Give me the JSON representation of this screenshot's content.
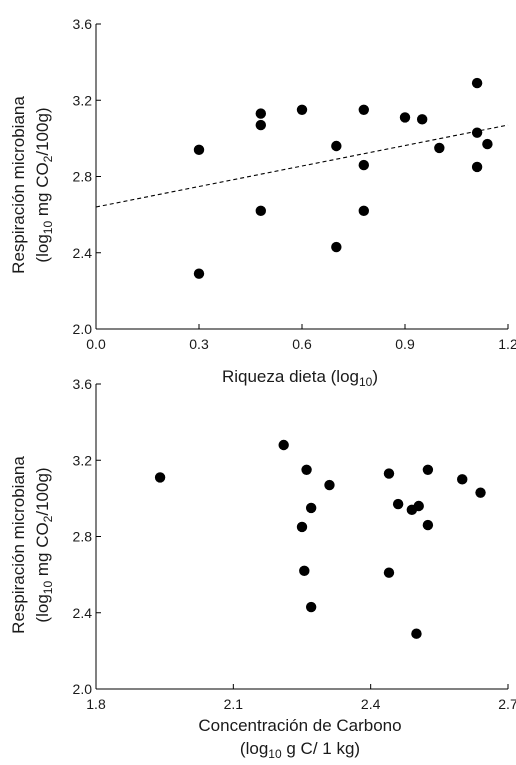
{
  "chart_data": [
    {
      "type": "scatter",
      "xlabel": "Riqueza dieta (log",
      "xlabel_sub": "10",
      "xlabel_end": ")",
      "ylabel_line1": "Respiración microbiana",
      "ylabel_line2": {
        "a": "(log",
        "sub1": "10",
        "b": " mg CO",
        "sub2": "2",
        "c": "/100g)"
      },
      "xlim": [
        0.0,
        1.2
      ],
      "ylim": [
        2.0,
        3.6
      ],
      "xticks": [
        "0.0",
        "0.3",
        "0.6",
        "0.9",
        "1.2"
      ],
      "yticks": [
        "2.0",
        "2.4",
        "2.8",
        "3.2",
        "3.6"
      ],
      "xtick_values": [
        0.0,
        0.3,
        0.6,
        0.9,
        1.2
      ],
      "ytick_values": [
        2.0,
        2.4,
        2.8,
        3.2,
        3.6
      ],
      "points": [
        {
          "x": 0.3,
          "y": 2.94
        },
        {
          "x": 0.3,
          "y": 2.29
        },
        {
          "x": 0.48,
          "y": 3.13
        },
        {
          "x": 0.48,
          "y": 3.07
        },
        {
          "x": 0.48,
          "y": 2.62
        },
        {
          "x": 0.6,
          "y": 3.15
        },
        {
          "x": 0.7,
          "y": 2.96
        },
        {
          "x": 0.7,
          "y": 2.43
        },
        {
          "x": 0.78,
          "y": 3.15
        },
        {
          "x": 0.78,
          "y": 2.86
        },
        {
          "x": 0.78,
          "y": 2.62
        },
        {
          "x": 0.9,
          "y": 3.11
        },
        {
          "x": 0.95,
          "y": 3.1
        },
        {
          "x": 1.0,
          "y": 2.95
        },
        {
          "x": 1.11,
          "y": 3.29
        },
        {
          "x": 1.11,
          "y": 3.03
        },
        {
          "x": 1.11,
          "y": 2.85
        },
        {
          "x": 1.14,
          "y": 2.97
        }
      ],
      "trendline": {
        "x": [
          0.0,
          1.2
        ],
        "y": [
          2.64,
          3.07
        ],
        "style": "dashed"
      },
      "grid": false
    },
    {
      "type": "scatter",
      "xlabel_line1": "Concentración de Carbono",
      "xlabel_line2": {
        "a": "(log",
        "sub": "10",
        "b": " g C/ 1 kg)"
      },
      "ylabel_line1": "Respiración microbiana",
      "ylabel_line2": {
        "a": "(log",
        "sub1": "10",
        "b": " mg CO",
        "sub2": "2",
        "c": "/100g)"
      },
      "xlim": [
        1.8,
        2.7
      ],
      "ylim": [
        2.0,
        3.6
      ],
      "xticks": [
        "1.8",
        "2.1",
        "2.4",
        "2.7"
      ],
      "yticks": [
        "2.0",
        "2.4",
        "2.8",
        "3.2",
        "3.6"
      ],
      "xtick_values": [
        1.8,
        2.1,
        2.4,
        2.7
      ],
      "ytick_values": [
        2.0,
        2.4,
        2.8,
        3.2,
        3.6
      ],
      "points": [
        {
          "x": 1.94,
          "y": 3.11
        },
        {
          "x": 2.21,
          "y": 3.28
        },
        {
          "x": 2.25,
          "y": 2.85
        },
        {
          "x": 2.255,
          "y": 2.62
        },
        {
          "x": 2.26,
          "y": 3.15
        },
        {
          "x": 2.27,
          "y": 2.95
        },
        {
          "x": 2.27,
          "y": 2.43
        },
        {
          "x": 2.31,
          "y": 3.07
        },
        {
          "x": 2.44,
          "y": 3.13
        },
        {
          "x": 2.44,
          "y": 2.61
        },
        {
          "x": 2.46,
          "y": 2.97
        },
        {
          "x": 2.49,
          "y": 2.94
        },
        {
          "x": 2.505,
          "y": 2.96
        },
        {
          "x": 2.5,
          "y": 2.29
        },
        {
          "x": 2.525,
          "y": 3.15
        },
        {
          "x": 2.525,
          "y": 2.86
        },
        {
          "x": 2.6,
          "y": 3.1
        },
        {
          "x": 2.64,
          "y": 3.03
        }
      ],
      "grid": false
    }
  ]
}
